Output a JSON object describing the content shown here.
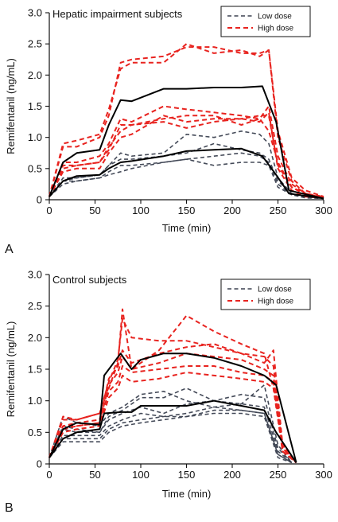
{
  "colors": {
    "low_dose": "#3b4150",
    "high_dose": "#e8231f",
    "mean": "#000000"
  },
  "chart_data": [
    {
      "type": "line",
      "panel_letter": "A",
      "title": "Hepatic impairment subjects",
      "xlabel": "Time (min)",
      "ylabel": "Remifentanil (ng/mL)",
      "xlim": [
        0,
        300
      ],
      "ylim": [
        0,
        3.0
      ],
      "x_ticks": [
        "0",
        "50",
        "100",
        "150",
        "200",
        "250",
        "300"
      ],
      "y_ticks": [
        "0",
        "0.5",
        "1.0",
        "1.5",
        "2.0",
        "2.5",
        "3.0"
      ],
      "legend": {
        "position": "top-right",
        "entries": [
          {
            "label": "Low dose",
            "style": "low"
          },
          {
            "label": "High dose",
            "style": "high"
          }
        ]
      },
      "series": [
        {
          "style": "high",
          "x": [
            0,
            15,
            30,
            55,
            65,
            78,
            90,
            125,
            150,
            180,
            210,
            230,
            240,
            250,
            265,
            280,
            300
          ],
          "y": [
            0.05,
            0.9,
            0.95,
            1.05,
            1.45,
            2.1,
            2.2,
            2.2,
            2.5,
            2.35,
            2.4,
            2.3,
            2.4,
            1.0,
            0.3,
            0.1,
            0.05
          ]
        },
        {
          "style": "high",
          "x": [
            0,
            15,
            30,
            55,
            65,
            78,
            90,
            125,
            150,
            180,
            210,
            230,
            240,
            250,
            265,
            280,
            300
          ],
          "y": [
            0.05,
            0.85,
            0.85,
            1.0,
            1.35,
            2.2,
            2.25,
            2.3,
            2.45,
            2.45,
            2.35,
            2.35,
            2.4,
            1.1,
            0.35,
            0.15,
            0.05
          ]
        },
        {
          "style": "high",
          "x": [
            0,
            15,
            30,
            55,
            65,
            78,
            90,
            125,
            150,
            180,
            210,
            230,
            240,
            250,
            265,
            280,
            300
          ],
          "y": [
            0.05,
            0.6,
            0.6,
            0.7,
            0.9,
            1.3,
            1.25,
            1.5,
            1.45,
            1.4,
            1.35,
            1.3,
            1.1,
            0.6,
            0.2,
            0.1,
            0.03
          ]
        },
        {
          "style": "high",
          "x": [
            0,
            15,
            30,
            55,
            65,
            78,
            90,
            125,
            150,
            180,
            210,
            230,
            240,
            250,
            265,
            280,
            300
          ],
          "y": [
            0.05,
            0.55,
            0.55,
            0.6,
            0.85,
            1.1,
            1.2,
            1.3,
            1.35,
            1.35,
            1.2,
            1.3,
            1.5,
            0.7,
            0.25,
            0.1,
            0.03
          ]
        },
        {
          "style": "high",
          "x": [
            0,
            15,
            30,
            55,
            65,
            78,
            90,
            125,
            150,
            180,
            210,
            230,
            240,
            250,
            265,
            280,
            300
          ],
          "y": [
            0.05,
            0.5,
            0.55,
            0.6,
            0.8,
            1.2,
            1.2,
            1.25,
            1.15,
            1.25,
            1.3,
            1.35,
            1.35,
            0.55,
            0.2,
            0.08,
            0.03
          ]
        },
        {
          "style": "high",
          "x": [
            0,
            15,
            30,
            55,
            65,
            78,
            90,
            125,
            150,
            180,
            210,
            230,
            240,
            250,
            265,
            280,
            300
          ],
          "y": [
            0.05,
            0.45,
            0.5,
            0.5,
            0.75,
            1.0,
            1.05,
            1.35,
            1.25,
            1.3,
            1.3,
            1.25,
            1.4,
            0.5,
            0.15,
            0.05,
            0.03
          ]
        },
        {
          "style": "low",
          "x": [
            0,
            15,
            30,
            55,
            65,
            78,
            90,
            125,
            150,
            180,
            210,
            230,
            240,
            250,
            265,
            280,
            300
          ],
          "y": [
            0.05,
            0.35,
            0.35,
            0.4,
            0.55,
            0.75,
            0.7,
            0.75,
            1.05,
            1.0,
            1.1,
            1.05,
            0.9,
            0.35,
            0.1,
            0.05,
            0.02
          ]
        },
        {
          "style": "low",
          "x": [
            0,
            15,
            30,
            55,
            65,
            78,
            90,
            125,
            150,
            180,
            210,
            230,
            240,
            250,
            265,
            280,
            300
          ],
          "y": [
            0.05,
            0.3,
            0.35,
            0.4,
            0.55,
            0.65,
            0.65,
            0.7,
            0.75,
            0.9,
            0.8,
            0.75,
            0.65,
            0.3,
            0.1,
            0.05,
            0.02
          ]
        },
        {
          "style": "low",
          "x": [
            0,
            15,
            30,
            55,
            65,
            78,
            90,
            125,
            150,
            180,
            210,
            230,
            240,
            250,
            265,
            280,
            300
          ],
          "y": [
            0.05,
            0.3,
            0.3,
            0.35,
            0.45,
            0.55,
            0.55,
            0.6,
            0.65,
            0.7,
            0.75,
            0.7,
            0.6,
            0.25,
            0.08,
            0.04,
            0.02
          ]
        },
        {
          "style": "low",
          "x": [
            0,
            15,
            30,
            55,
            65,
            78,
            90,
            125,
            150,
            180,
            210,
            230,
            240,
            250,
            265,
            280,
            300
          ],
          "y": [
            0.05,
            0.25,
            0.3,
            0.35,
            0.4,
            0.45,
            0.5,
            0.6,
            0.65,
            0.55,
            0.6,
            0.6,
            0.55,
            0.2,
            0.08,
            0.03,
            0.02
          ]
        },
        {
          "style": "mean",
          "x": [
            0,
            15,
            30,
            55,
            65,
            78,
            90,
            125,
            150,
            180,
            210,
            233,
            248,
            262,
            300
          ],
          "y": [
            0.05,
            0.6,
            0.75,
            0.8,
            1.2,
            1.6,
            1.58,
            1.78,
            1.78,
            1.8,
            1.8,
            1.82,
            1.25,
            0.15,
            0.02
          ]
        },
        {
          "style": "mean",
          "x": [
            0,
            15,
            30,
            55,
            65,
            78,
            90,
            125,
            150,
            180,
            210,
            233,
            248,
            262,
            300
          ],
          "y": [
            0.05,
            0.3,
            0.38,
            0.4,
            0.5,
            0.6,
            0.62,
            0.7,
            0.78,
            0.8,
            0.82,
            0.7,
            0.4,
            0.1,
            0.02
          ]
        }
      ]
    },
    {
      "type": "line",
      "panel_letter": "B",
      "title": "Control subjects",
      "xlabel": "Time (min)",
      "ylabel": "Remifentanil (ng/mL)",
      "xlim": [
        0,
        300
      ],
      "ylim": [
        0,
        3.0
      ],
      "x_ticks": [
        "0",
        "50",
        "100",
        "150",
        "200",
        "250",
        "300"
      ],
      "y_ticks": [
        "0",
        "0.5",
        "1.0",
        "1.5",
        "2.0",
        "2.5",
        "3.0"
      ],
      "legend": {
        "position": "top-right",
        "entries": [
          {
            "label": "Low dose",
            "style": "low"
          },
          {
            "label": "High dose",
            "style": "high"
          }
        ]
      },
      "series": [
        {
          "style": "high",
          "x": [
            0,
            15,
            30,
            55,
            65,
            75,
            80,
            90,
            120,
            150,
            180,
            210,
            235,
            245,
            255,
            270
          ],
          "y": [
            0.1,
            0.7,
            0.7,
            0.8,
            1.2,
            1.6,
            2.45,
            1.5,
            1.8,
            2.35,
            2.1,
            1.9,
            1.75,
            1.2,
            0.3,
            0.02
          ]
        },
        {
          "style": "high",
          "x": [
            0,
            15,
            30,
            55,
            65,
            75,
            80,
            90,
            120,
            150,
            180,
            210,
            235,
            245,
            255,
            270
          ],
          "y": [
            0.1,
            0.75,
            0.7,
            0.8,
            1.3,
            1.65,
            2.3,
            2.0,
            1.95,
            1.95,
            1.85,
            1.75,
            1.6,
            1.8,
            0.3,
            0.02
          ]
        },
        {
          "style": "high",
          "x": [
            0,
            15,
            30,
            55,
            65,
            75,
            80,
            90,
            120,
            150,
            180,
            210,
            235,
            245,
            255,
            270
          ],
          "y": [
            0.1,
            0.6,
            0.65,
            0.7,
            1.35,
            1.55,
            1.8,
            1.6,
            1.75,
            1.85,
            1.9,
            1.75,
            1.7,
            1.55,
            0.25,
            0.02
          ]
        },
        {
          "style": "high",
          "x": [
            0,
            15,
            30,
            55,
            65,
            75,
            80,
            90,
            120,
            150,
            180,
            210,
            235,
            245,
            255,
            270
          ],
          "y": [
            0.1,
            0.6,
            0.6,
            0.65,
            1.25,
            1.45,
            1.7,
            1.5,
            1.6,
            1.75,
            1.7,
            1.65,
            1.5,
            1.4,
            0.25,
            0.02
          ]
        },
        {
          "style": "high",
          "x": [
            0,
            15,
            30,
            55,
            65,
            75,
            80,
            90,
            120,
            150,
            180,
            210,
            235,
            245,
            255,
            270
          ],
          "y": [
            0.1,
            0.55,
            0.6,
            0.65,
            1.15,
            1.3,
            1.55,
            1.45,
            1.5,
            1.55,
            1.55,
            1.45,
            1.4,
            1.3,
            0.2,
            0.02
          ]
        },
        {
          "style": "high",
          "x": [
            0,
            15,
            30,
            55,
            65,
            75,
            80,
            90,
            120,
            150,
            180,
            210,
            235,
            245,
            255,
            270
          ],
          "y": [
            0.1,
            0.5,
            0.55,
            0.6,
            1.05,
            1.2,
            1.4,
            1.3,
            1.35,
            1.45,
            1.4,
            1.35,
            1.3,
            1.2,
            0.2,
            0.02
          ]
        },
        {
          "style": "low",
          "x": [
            0,
            15,
            30,
            55,
            65,
            80,
            100,
            125,
            150,
            180,
            210,
            235,
            250,
            265
          ],
          "y": [
            0.1,
            0.75,
            0.65,
            0.6,
            0.8,
            0.9,
            1.1,
            1.15,
            1.0,
            0.9,
            0.95,
            1.25,
            0.3,
            0.02
          ]
        },
        {
          "style": "low",
          "x": [
            0,
            15,
            30,
            55,
            65,
            80,
            100,
            125,
            150,
            180,
            210,
            235,
            250,
            265
          ],
          "y": [
            0.1,
            0.6,
            0.55,
            0.5,
            0.75,
            0.85,
            1.05,
            1.05,
            1.2,
            1.0,
            1.1,
            1.05,
            0.25,
            0.02
          ]
        },
        {
          "style": "low",
          "x": [
            0,
            15,
            30,
            55,
            65,
            80,
            100,
            125,
            150,
            180,
            210,
            235,
            250,
            265
          ],
          "y": [
            0.1,
            0.55,
            0.5,
            0.5,
            0.7,
            0.8,
            0.9,
            0.8,
            0.95,
            1.0,
            0.95,
            0.9,
            0.2,
            0.02
          ]
        },
        {
          "style": "low",
          "x": [
            0,
            15,
            30,
            55,
            65,
            80,
            100,
            125,
            150,
            180,
            210,
            235,
            250,
            265
          ],
          "y": [
            0.1,
            0.45,
            0.45,
            0.45,
            0.6,
            0.7,
            0.8,
            0.75,
            0.75,
            0.85,
            0.85,
            0.8,
            0.15,
            0.02
          ]
        },
        {
          "style": "low",
          "x": [
            0,
            15,
            30,
            55,
            65,
            80,
            100,
            125,
            150,
            180,
            210,
            235,
            250,
            265
          ],
          "y": [
            0.1,
            0.4,
            0.4,
            0.4,
            0.55,
            0.65,
            0.7,
            0.75,
            0.8,
            0.9,
            0.85,
            0.8,
            0.15,
            0.02
          ]
        },
        {
          "style": "low",
          "x": [
            0,
            15,
            30,
            55,
            65,
            80,
            100,
            125,
            150,
            180,
            210,
            235,
            250,
            265
          ],
          "y": [
            0.1,
            0.35,
            0.35,
            0.35,
            0.5,
            0.6,
            0.65,
            0.7,
            0.75,
            0.8,
            0.8,
            0.75,
            0.1,
            0.02
          ]
        },
        {
          "style": "mean",
          "x": [
            0,
            15,
            30,
            55,
            60,
            78,
            90,
            100,
            125,
            150,
            180,
            210,
            235,
            248,
            270
          ],
          "y": [
            0.1,
            0.55,
            0.65,
            0.62,
            1.4,
            1.75,
            1.5,
            1.65,
            1.75,
            1.75,
            1.68,
            1.55,
            1.4,
            1.25,
            0.02
          ]
        },
        {
          "style": "mean",
          "x": [
            0,
            15,
            30,
            55,
            60,
            78,
            90,
            100,
            125,
            150,
            180,
            210,
            235,
            248,
            270
          ],
          "y": [
            0.1,
            0.4,
            0.5,
            0.55,
            0.8,
            0.82,
            0.82,
            0.92,
            0.92,
            0.92,
            1.0,
            0.92,
            0.85,
            0.5,
            0.02
          ]
        }
      ]
    }
  ]
}
